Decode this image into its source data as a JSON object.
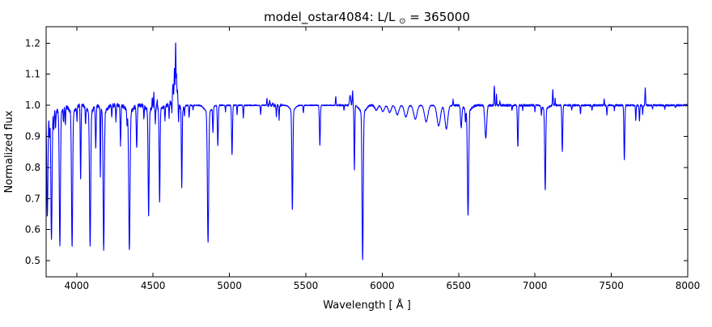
{
  "window": {
    "background": "#ffffff"
  },
  "chart_data": {
    "type": "line",
    "title": "model_ostar4084: L/L⊙ = 365000",
    "title_parts": {
      "prefix": "model_ostar4084: L/L",
      "sun_symbol": "⊙",
      "suffix": " = 365000"
    },
    "xlabel": "Wavelength [ Å ]",
    "ylabel": "Normalized flux",
    "xlim": [
      3800,
      8000
    ],
    "ylim": [
      0.448,
      1.253
    ],
    "x_ticks": [
      4000,
      4500,
      5000,
      5500,
      6000,
      6500,
      7000,
      7500,
      8000
    ],
    "y_ticks": [
      0.5,
      0.6,
      0.7,
      0.8,
      0.9,
      1.0,
      1.1,
      1.2
    ],
    "grid": false,
    "legend": null,
    "line_color": "#0000ff",
    "axis_color": "#000000",
    "continuum_flux": 1.0,
    "features_format": "[wavelength_angstrom, flux_extremum, width_angstrom]",
    "features": {
      "absorption": [
        [
          3808,
          0.65,
          9
        ],
        [
          3822,
          0.93,
          5
        ],
        [
          3835,
          0.575,
          9
        ],
        [
          3850,
          0.94,
          5
        ],
        [
          3862,
          0.945,
          5
        ],
        [
          3890,
          0.55,
          9
        ],
        [
          3914,
          0.955,
          5
        ],
        [
          3926,
          0.945,
          5
        ],
        [
          3970,
          0.545,
          9
        ],
        [
          4002,
          0.955,
          5
        ],
        [
          4026,
          0.765,
          6
        ],
        [
          4058,
          0.945,
          5
        ],
        [
          4088,
          0.545,
          9
        ],
        [
          4125,
          0.865,
          6
        ],
        [
          4155,
          0.775,
          4
        ],
        [
          4177,
          0.535,
          9
        ],
        [
          4230,
          0.965,
          5
        ],
        [
          4257,
          0.95,
          5
        ],
        [
          4287,
          0.875,
          6
        ],
        [
          4330,
          0.955,
          5
        ],
        [
          4345,
          0.535,
          10
        ],
        [
          4393,
          0.86,
          7
        ],
        [
          4440,
          0.96,
          5
        ],
        [
          4471,
          0.65,
          8
        ],
        [
          4515,
          0.945,
          5
        ],
        [
          4543,
          0.69,
          7
        ],
        [
          4578,
          0.955,
          5
        ],
        [
          4605,
          0.96,
          5
        ],
        [
          4623,
          0.97,
          4
        ],
        [
          4667,
          0.944,
          4
        ],
        [
          4688,
          0.735,
          6
        ],
        [
          4706,
          0.97,
          4
        ],
        [
          4736,
          0.96,
          5
        ],
        [
          4762,
          0.985,
          4
        ],
        [
          4860,
          0.56,
          10
        ],
        [
          4892,
          0.92,
          6
        ],
        [
          4924,
          0.872,
          7
        ],
        [
          4974,
          0.98,
          4
        ],
        [
          5017,
          0.84,
          7
        ],
        [
          5050,
          0.97,
          4
        ],
        [
          5091,
          0.96,
          5
        ],
        [
          5204,
          0.972,
          5
        ],
        [
          5307,
          0.967,
          5
        ],
        [
          5325,
          0.956,
          5
        ],
        [
          5412,
          0.665,
          8
        ],
        [
          5484,
          0.976,
          5
        ],
        [
          5592,
          0.873,
          7
        ],
        [
          5750,
          0.985,
          4
        ],
        [
          5818,
          0.795,
          6
        ],
        [
          5872,
          0.505,
          9
        ],
        [
          5961,
          0.985,
          22
        ],
        [
          6005,
          0.98,
          22
        ],
        [
          6049,
          0.977,
          22
        ],
        [
          6099,
          0.97,
          24
        ],
        [
          6155,
          0.963,
          24
        ],
        [
          6217,
          0.956,
          26
        ],
        [
          6288,
          0.947,
          26
        ],
        [
          6370,
          0.934,
          26
        ],
        [
          6420,
          0.924,
          22
        ],
        [
          6517,
          0.93,
          10
        ],
        [
          6545,
          0.96,
          5
        ],
        [
          6562,
          0.648,
          10
        ],
        [
          6678,
          0.895,
          14
        ],
        [
          6850,
          0.985,
          5
        ],
        [
          6888,
          0.865,
          7
        ],
        [
          6920,
          0.985,
          4
        ],
        [
          7000,
          0.98,
          4
        ],
        [
          7042,
          0.975,
          5
        ],
        [
          7067,
          0.727,
          8
        ],
        [
          7179,
          0.852,
          7
        ],
        [
          7241,
          0.985,
          5
        ],
        [
          7298,
          0.975,
          5
        ],
        [
          7373,
          0.985,
          5
        ],
        [
          7471,
          0.97,
          5
        ],
        [
          7520,
          0.985,
          4
        ],
        [
          7585,
          0.825,
          7
        ],
        [
          7660,
          0.952,
          5
        ],
        [
          7684,
          0.948,
          5
        ],
        [
          7705,
          0.97,
          4
        ],
        [
          7770,
          0.99,
          4
        ],
        [
          7850,
          0.988,
          4
        ],
        [
          7920,
          0.99,
          4
        ]
      ],
      "emission": [
        [
          4495,
          1.03,
          4
        ],
        [
          4505,
          1.04,
          4
        ],
        [
          4527,
          1.025,
          4
        ],
        [
          4610,
          1.01,
          4
        ],
        [
          4630,
          1.055,
          6
        ],
        [
          4640,
          1.1,
          5
        ],
        [
          4648,
          1.187,
          5
        ],
        [
          4654,
          1.08,
          4
        ],
        [
          4660,
          1.035,
          4
        ],
        [
          4645,
          1.02,
          40
        ],
        [
          5246,
          1.02,
          5
        ],
        [
          5264,
          1.015,
          5
        ],
        [
          5285,
          1.01,
          4
        ],
        [
          5696,
          1.028,
          5
        ],
        [
          5790,
          1.03,
          10
        ],
        [
          5806,
          1.045,
          5
        ],
        [
          6464,
          1.017,
          5
        ],
        [
          6734,
          1.065,
          5
        ],
        [
          6748,
          1.035,
          4
        ],
        [
          6770,
          1.012,
          4
        ],
        [
          7117,
          1.048,
          5
        ],
        [
          7132,
          1.02,
          4
        ],
        [
          7453,
          1.02,
          4
        ],
        [
          7722,
          1.055,
          5
        ]
      ]
    },
    "noise_regions": [
      [
        3800,
        4700,
        0.0065
      ],
      [
        4700,
        5240,
        0.002
      ],
      [
        5240,
        5340,
        0.005
      ],
      [
        5340,
        5700,
        0.0015
      ],
      [
        5700,
        5960,
        0.003
      ],
      [
        5960,
        6450,
        0.0015
      ],
      [
        6450,
        6820,
        0.0035
      ],
      [
        6820,
        7140,
        0.0035
      ],
      [
        7140,
        8000,
        0.003
      ]
    ]
  }
}
